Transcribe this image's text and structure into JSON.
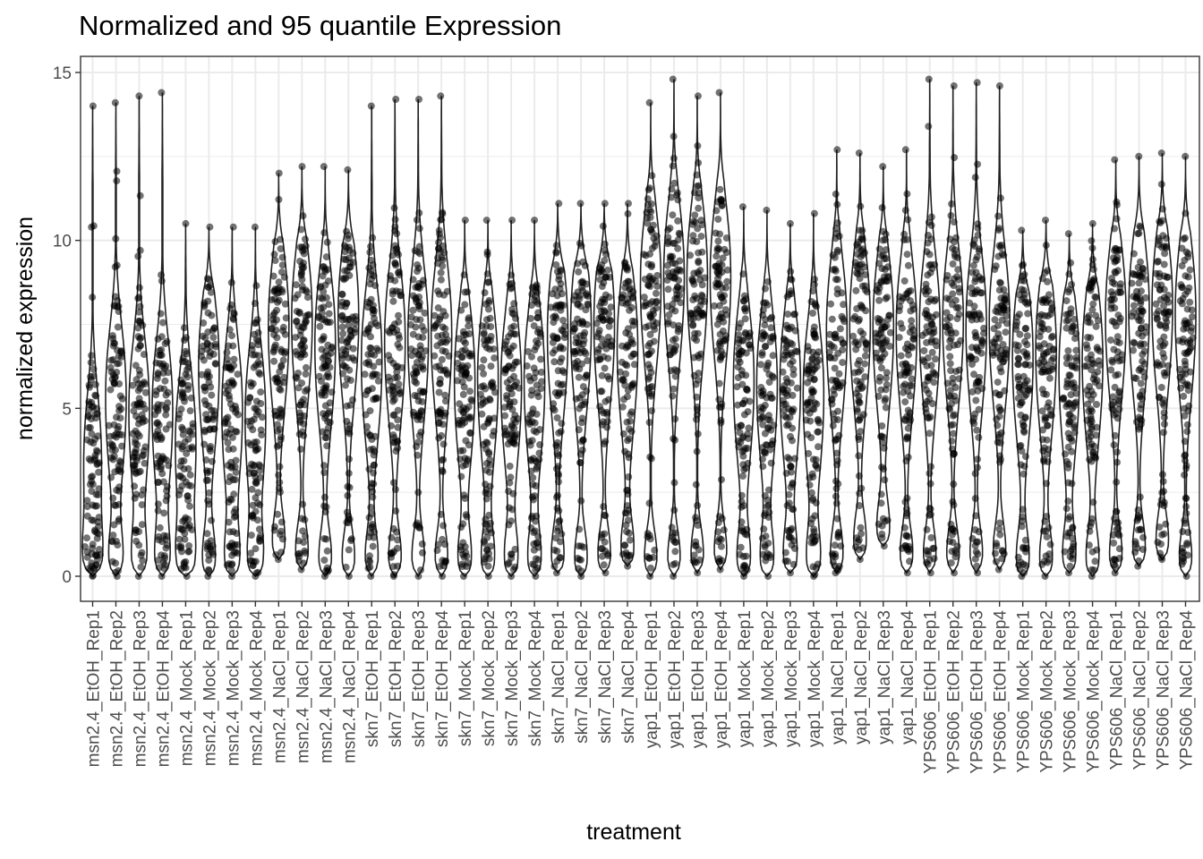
{
  "chart_data": {
    "type": "violin",
    "title": "Normalized and 95 quantile Expression",
    "xlabel": "treatment",
    "ylabel": "normalized expression",
    "ylim": [
      -0.7,
      15.5
    ],
    "yticks": [
      0,
      5,
      10,
      15
    ],
    "grid": true,
    "legend": "none",
    "categories": [
      "msn2.4_EtOH_Rep1",
      "msn2.4_EtOH_Rep2",
      "msn2.4_EtOH_Rep3",
      "msn2.4_EtOH_Rep4",
      "msn2.4_Mock_Rep1",
      "msn2.4_Mock_Rep2",
      "msn2.4_Mock_Rep3",
      "msn2.4_Mock_Rep4",
      "msn2.4_NaCl_Rep1",
      "msn2.4_NaCl_Rep2",
      "msn2.4_NaCl_Rep3",
      "msn2.4_NaCl_Rep4",
      "skn7_EtOH_Rep1",
      "skn7_EtOH_Rep2",
      "skn7_EtOH_Rep3",
      "skn7_EtOH_Rep4",
      "skn7_Mock_Rep1",
      "skn7_Mock_Rep2",
      "skn7_Mock_Rep3",
      "skn7_Mock_Rep4",
      "skn7_NaCl_Rep1",
      "skn7_NaCl_Rep2",
      "skn7_NaCl_Rep3",
      "skn7_NaCl_Rep4",
      "yap1_EtOH_Rep1",
      "yap1_EtOH_Rep2",
      "yap1_EtOH_Rep3",
      "yap1_EtOH_Rep4",
      "yap1_Mock_Rep1",
      "yap1_Mock_Rep2",
      "yap1_Mock_Rep3",
      "yap1_Mock_Rep4",
      "yap1_NaCl_Rep1",
      "yap1_NaCl_Rep2",
      "yap1_NaCl_Rep3",
      "yap1_NaCl_Rep4",
      "YPS606_EtOH_Rep1",
      "YPS606_EtOH_Rep2",
      "YPS606_EtOH_Rep3",
      "YPS606_EtOH_Rep4",
      "YPS606_Mock_Rep1",
      "YPS606_Mock_Rep2",
      "YPS606_Mock_Rep3",
      "YPS606_Mock_Rep4",
      "YPS606_NaCl_Rep1",
      "YPS606_NaCl_Rep2",
      "YPS606_NaCl_Rep3",
      "YPS606_NaCl_Rep4"
    ],
    "min": [
      0.0,
      0.0,
      0.0,
      0.0,
      0.0,
      0.0,
      0.0,
      0.0,
      0.5,
      0.2,
      0.0,
      0.0,
      0.0,
      0.0,
      0.0,
      0.0,
      0.0,
      0.0,
      0.0,
      0.0,
      0.1,
      0.0,
      0.1,
      0.3,
      0.0,
      0.0,
      0.1,
      0.2,
      0.0,
      0.0,
      0.1,
      0.0,
      0.1,
      0.5,
      0.9,
      0.1,
      0.1,
      0.1,
      0.1,
      0.2,
      0.0,
      0.0,
      0.1,
      0.0,
      0.1,
      0.3,
      0.5,
      0.0
    ],
    "max": [
      14.0,
      14.1,
      14.3,
      14.4,
      10.5,
      10.4,
      10.4,
      10.4,
      12.0,
      12.2,
      12.2,
      12.1,
      14.0,
      14.2,
      14.2,
      14.3,
      10.6,
      10.6,
      10.6,
      10.6,
      11.1,
      11.1,
      11.1,
      11.1,
      14.1,
      14.8,
      14.3,
      14.4,
      11.0,
      10.9,
      10.5,
      10.8,
      12.7,
      12.6,
      12.2,
      12.7,
      14.8,
      14.6,
      14.7,
      14.6,
      10.3,
      10.6,
      10.2,
      10.5,
      12.4,
      12.5,
      12.6,
      12.5
    ],
    "median": [
      2.4,
      4.4,
      4.0,
      4.0,
      3.0,
      5.3,
      4.0,
      3.8,
      6.5,
      6.7,
      6.0,
      6.8,
      5.5,
      6.1,
      6.2,
      6.3,
      4.9,
      5.0,
      4.8,
      4.9,
      6.3,
      6.5,
      6.6,
      5.9,
      7.8,
      8.0,
      8.0,
      8.0,
      4.9,
      4.8,
      4.8,
      4.5,
      6.4,
      6.6,
      6.5,
      6.4,
      6.5,
      6.7,
      6.5,
      6.6,
      5.6,
      5.8,
      5.2,
      5.5,
      6.8,
      7.0,
      7.1,
      6.9
    ]
  }
}
